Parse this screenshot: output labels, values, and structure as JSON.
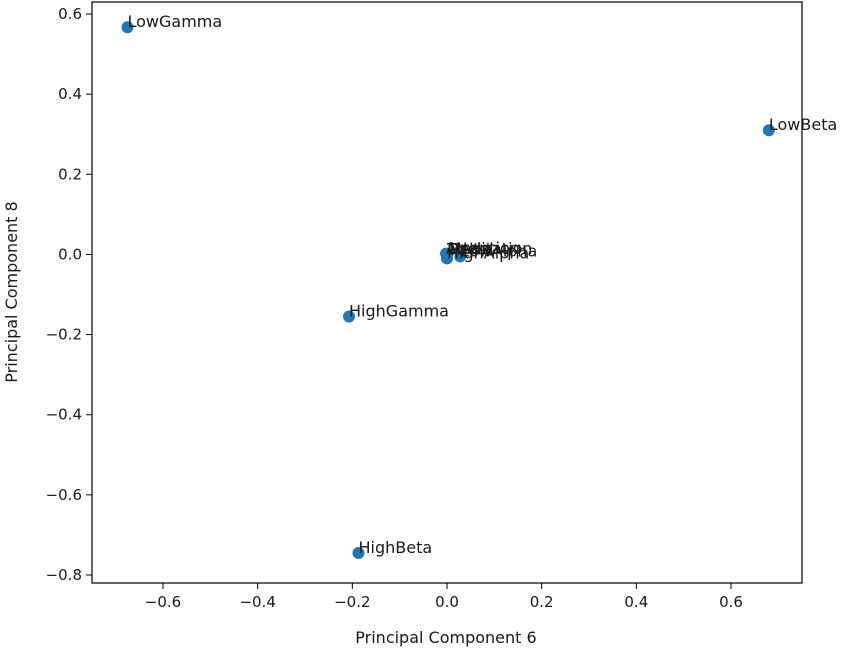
{
  "chart_data": {
    "type": "scatter",
    "title": "",
    "xlabel": "Principal Component 6",
    "ylabel": "Principal Component 8",
    "xlim": [
      -0.75,
      0.75
    ],
    "ylim": [
      -0.82,
      0.63
    ],
    "grid": false,
    "point_color": "#1f77b4",
    "x_ticks": [
      {
        "value": -0.6,
        "label": "−0.6"
      },
      {
        "value": -0.4,
        "label": "−0.4"
      },
      {
        "value": -0.2,
        "label": "−0.2"
      },
      {
        "value": 0.0,
        "label": "0.0"
      },
      {
        "value": 0.2,
        "label": "0.2"
      },
      {
        "value": 0.4,
        "label": "0.4"
      },
      {
        "value": 0.6,
        "label": "0.6"
      }
    ],
    "y_ticks": [
      {
        "value": 0.6,
        "label": "0.6"
      },
      {
        "value": 0.4,
        "label": "0.4"
      },
      {
        "value": 0.2,
        "label": "0.2"
      },
      {
        "value": 0.0,
        "label": "0.0"
      },
      {
        "value": -0.2,
        "label": "−0.2"
      },
      {
        "value": -0.4,
        "label": "−0.4"
      },
      {
        "value": -0.6,
        "label": "−0.6"
      },
      {
        "value": -0.8,
        "label": "−0.8"
      }
    ],
    "points": [
      {
        "label": "LowGamma",
        "x": -0.675,
        "y": 0.567
      },
      {
        "label": "LowBeta",
        "x": 0.68,
        "y": 0.31
      },
      {
        "label": "HighGamma",
        "x": -0.207,
        "y": -0.155
      },
      {
        "label": "HighBeta",
        "x": -0.187,
        "y": -0.745
      },
      {
        "label": "HighAlpha",
        "x": 0.0,
        "y": -0.01
      },
      {
        "label": "LowAlpha",
        "x": 0.028,
        "y": -0.005
      },
      {
        "label": "Theta",
        "x": 0.0,
        "y": 0.0
      },
      {
        "label": "Delta",
        "x": 0.0,
        "y": 0.0
      },
      {
        "label": "Attention",
        "x": -0.002,
        "y": 0.002
      },
      {
        "label": "Meditation",
        "x": 0.001,
        "y": 0.001
      }
    ]
  }
}
